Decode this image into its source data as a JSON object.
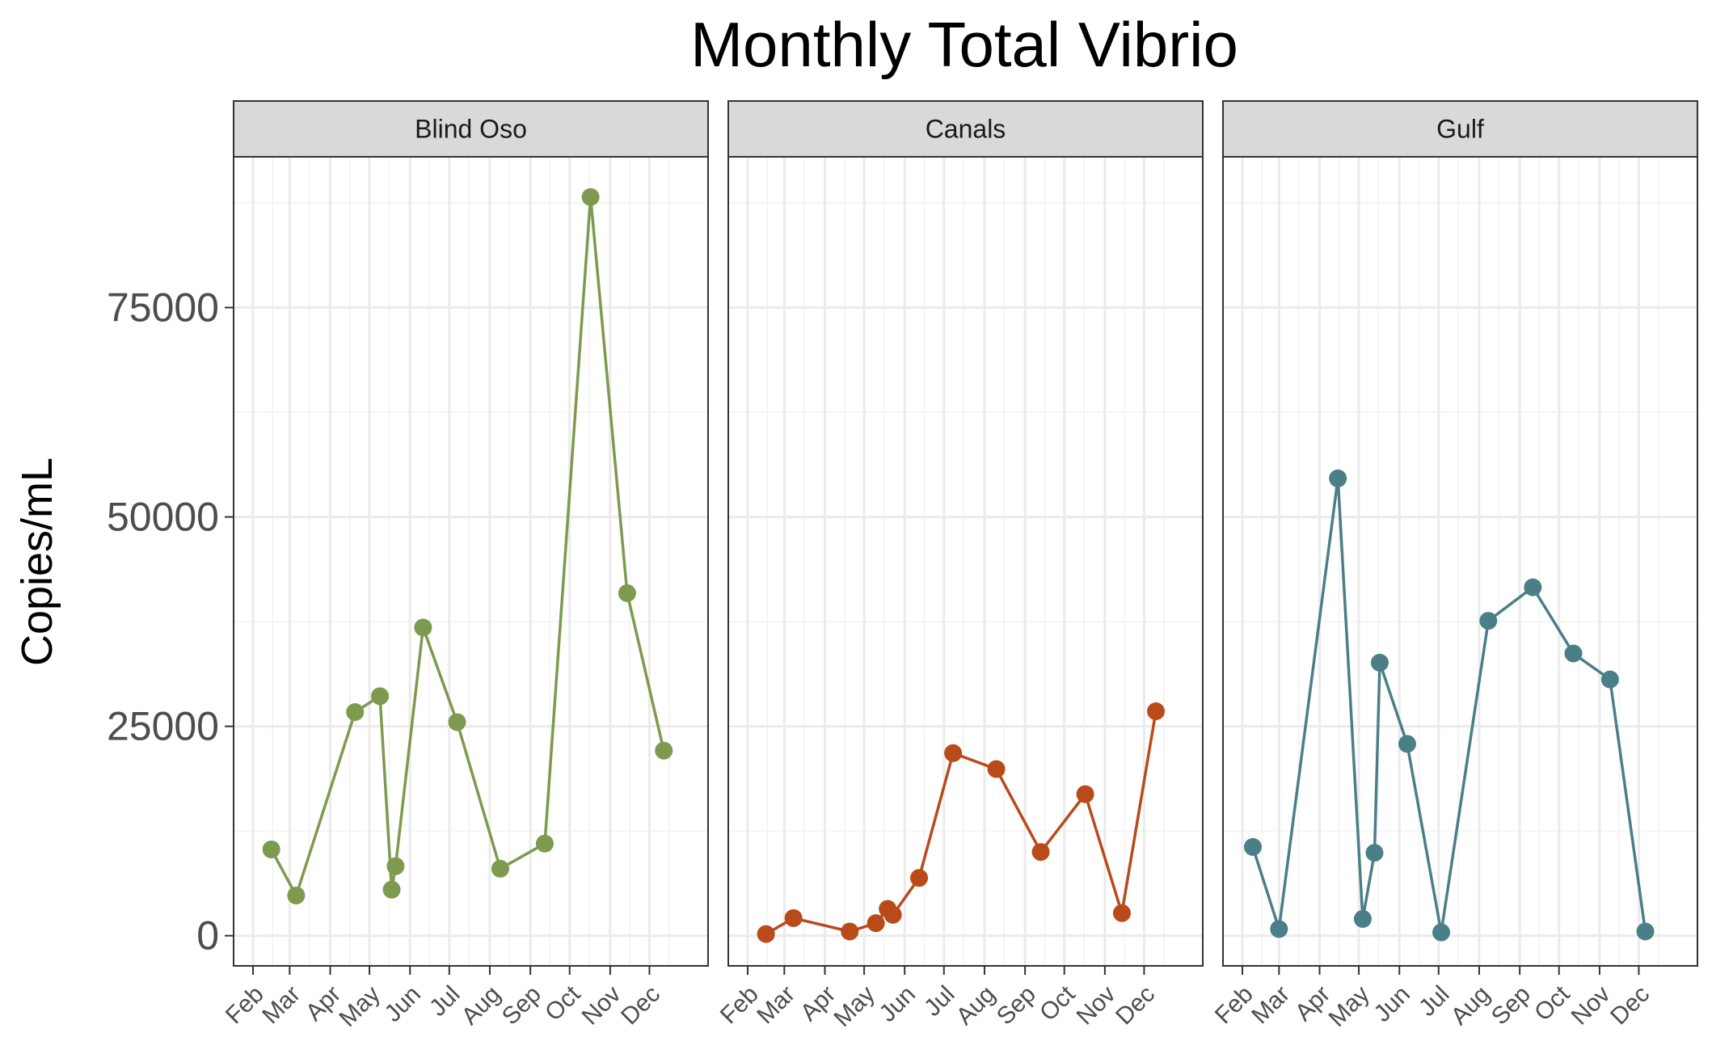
{
  "chart_data": {
    "type": "line",
    "title": "Monthly Total Vibrio",
    "xlabel": "",
    "ylabel": "Copies/mL",
    "ylim": [
      -3600,
      93000
    ],
    "yticks": [
      0,
      25000,
      50000,
      75000
    ],
    "ytick_labels": [
      "0",
      "25000",
      "50000",
      "75000"
    ],
    "xlim": [
      "2023-02-01",
      "2023-12-31"
    ],
    "xticks": [
      "2023-02-01",
      "2023-03-01",
      "2023-04-01",
      "2023-05-01",
      "2023-06-01",
      "2023-07-01",
      "2023-08-01",
      "2023-09-01",
      "2023-10-01",
      "2023-11-01",
      "2023-12-01"
    ],
    "xtick_labels": [
      "Feb",
      "Mar",
      "Apr",
      "May",
      "Jun",
      "Jul",
      "Aug",
      "Sep",
      "Oct",
      "Nov",
      "Dec"
    ],
    "grid": true,
    "legend": "none",
    "facets": [
      {
        "name": "Blind Oso",
        "color": "#7d9a4f",
        "points": [
          {
            "x": "2023-02-15",
            "y": 10300
          },
          {
            "x": "2023-03-06",
            "y": 4800
          },
          {
            "x": "2023-04-20",
            "y": 26700
          },
          {
            "x": "2023-05-09",
            "y": 28600
          },
          {
            "x": "2023-05-18",
            "y": 5500
          },
          {
            "x": "2023-05-21",
            "y": 8300
          },
          {
            "x": "2023-06-11",
            "y": 36800
          },
          {
            "x": "2023-07-07",
            "y": 25500
          },
          {
            "x": "2023-08-09",
            "y": 8000
          },
          {
            "x": "2023-09-12",
            "y": 11000
          },
          {
            "x": "2023-10-17",
            "y": 88200
          },
          {
            "x": "2023-11-14",
            "y": 40900
          },
          {
            "x": "2023-12-12",
            "y": 22100
          }
        ]
      },
      {
        "name": "Canals",
        "color": "#b94a1a",
        "points": [
          {
            "x": "2023-02-15",
            "y": 200
          },
          {
            "x": "2023-03-08",
            "y": 2100
          },
          {
            "x": "2023-04-20",
            "y": 500
          },
          {
            "x": "2023-05-10",
            "y": 1500
          },
          {
            "x": "2023-05-19",
            "y": 3200
          },
          {
            "x": "2023-05-23",
            "y": 2500
          },
          {
            "x": "2023-06-12",
            "y": 6900
          },
          {
            "x": "2023-07-08",
            "y": 21800
          },
          {
            "x": "2023-08-10",
            "y": 19900
          },
          {
            "x": "2023-09-13",
            "y": 10000
          },
          {
            "x": "2023-10-17",
            "y": 16900
          },
          {
            "x": "2023-11-14",
            "y": 2700
          },
          {
            "x": "2023-12-10",
            "y": 26800
          }
        ]
      },
      {
        "name": "Gulf",
        "color": "#4a7f87",
        "points": [
          {
            "x": "2023-02-09",
            "y": 10600
          },
          {
            "x": "2023-03-01",
            "y": 800
          },
          {
            "x": "2023-04-15",
            "y": 54600
          },
          {
            "x": "2023-05-04",
            "y": 2000
          },
          {
            "x": "2023-05-13",
            "y": 9900
          },
          {
            "x": "2023-05-17",
            "y": 32600
          },
          {
            "x": "2023-06-07",
            "y": 22900
          },
          {
            "x": "2023-07-03",
            "y": 400
          },
          {
            "x": "2023-08-08",
            "y": 37600
          },
          {
            "x": "2023-09-11",
            "y": 41600
          },
          {
            "x": "2023-10-12",
            "y": 33700
          },
          {
            "x": "2023-11-09",
            "y": 30600
          },
          {
            "x": "2023-12-06",
            "y": 500
          }
        ]
      }
    ]
  }
}
